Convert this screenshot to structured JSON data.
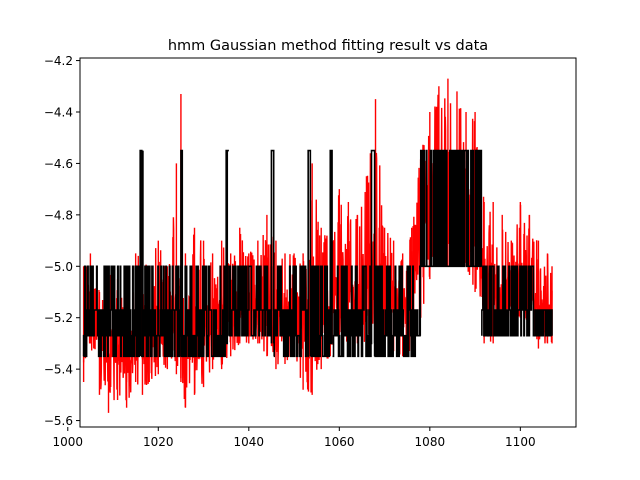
{
  "chart_data": {
    "type": "line",
    "title": "hmm Gaussian method fitting result vs data",
    "xlabel": "",
    "ylabel": "",
    "xlim": [
      1002.7,
      1112.3
    ],
    "ylim": [
      -5.625,
      -4.19
    ],
    "x_ticks": [
      {
        "value": 1000,
        "label": "1000"
      },
      {
        "value": 1020,
        "label": "1020"
      },
      {
        "value": 1040,
        "label": "1040"
      },
      {
        "value": 1060,
        "label": "1060"
      },
      {
        "value": 1080,
        "label": "1080"
      },
      {
        "value": 1100,
        "label": "1100"
      }
    ],
    "y_ticks": [
      {
        "value": -4.2,
        "label": "−4.2"
      },
      {
        "value": -4.4,
        "label": "−4.4"
      },
      {
        "value": -4.6,
        "label": "−4.6"
      },
      {
        "value": -4.8,
        "label": "−4.8"
      },
      {
        "value": -5.0,
        "label": "−5.0"
      },
      {
        "value": -5.2,
        "label": "−5.2"
      },
      {
        "value": -5.4,
        "label": "−5.4"
      },
      {
        "value": -5.6,
        "label": "−5.6"
      }
    ],
    "grid": false,
    "legend": "none",
    "series": [
      {
        "role": "data",
        "color": "#ff0000",
        "x": [
          1003.5,
          1005,
          1007,
          1009,
          1011,
          1013,
          1015,
          1016.5,
          1018,
          1020,
          1022,
          1024,
          1025,
          1026,
          1028,
          1030,
          1032,
          1034,
          1036,
          1038,
          1040,
          1042,
          1044,
          1046,
          1048,
          1050,
          1052,
          1054,
          1056,
          1058,
          1060,
          1062,
          1064,
          1066,
          1068,
          1070,
          1072,
          1074,
          1076,
          1078,
          1080,
          1082,
          1084,
          1086,
          1088,
          1090,
          1092,
          1094,
          1096,
          1098,
          1100,
          1102,
          1104,
          1106,
          1107
        ],
        "y": [
          -5.2,
          -5.15,
          -5.25,
          -5.35,
          -5.3,
          -5.35,
          -5.3,
          -5.25,
          -5.3,
          -5.28,
          -5.25,
          -5.2,
          -5.2,
          -5.25,
          -5.28,
          -5.25,
          -5.22,
          -5.2,
          -5.18,
          -5.15,
          -5.1,
          -5.15,
          -5.18,
          -5.2,
          -5.22,
          -5.18,
          -5.2,
          -5.25,
          -5.2,
          -5.15,
          -5.1,
          -5.1,
          -5.15,
          -5.12,
          -5.1,
          -5.1,
          -5.15,
          -5.2,
          -5.1,
          -4.9,
          -4.75,
          -4.7,
          -4.65,
          -4.7,
          -4.75,
          -4.8,
          -5.1,
          -5.1,
          -5.15,
          -5.05,
          -5.05,
          -5.1,
          -5.18,
          -5.2,
          -5.2
        ],
        "min": [
          -5.45,
          -5.3,
          -5.5,
          -5.57,
          -5.52,
          -5.55,
          -5.45,
          -5.5,
          -5.45,
          -5.42,
          -5.4,
          -5.42,
          -5.45,
          -5.55,
          -5.5,
          -5.47,
          -5.4,
          -5.4,
          -5.35,
          -5.3,
          -5.3,
          -5.3,
          -5.35,
          -5.4,
          -5.38,
          -5.33,
          -5.48,
          -5.5,
          -5.4,
          -5.35,
          -5.3,
          -5.3,
          -5.3,
          -5.35,
          -5.3,
          -5.3,
          -5.33,
          -5.35,
          -5.35,
          -5.2,
          -5.05,
          -4.95,
          -5.0,
          -5.0,
          -5.0,
          -5.1,
          -5.3,
          -5.3,
          -5.25,
          -5.2,
          -5.2,
          -5.25,
          -5.32,
          -5.3,
          -5.3
        ],
        "max": [
          -5.0,
          -4.95,
          -5.1,
          -5.0,
          -5.05,
          -5.1,
          -4.95,
          -4.85,
          -5.0,
          -4.9,
          -5.0,
          -4.6,
          -4.33,
          -4.95,
          -4.85,
          -4.9,
          -4.95,
          -4.9,
          -4.95,
          -4.85,
          -4.95,
          -4.9,
          -4.8,
          -4.9,
          -4.95,
          -4.95,
          -4.95,
          -4.6,
          -4.85,
          -4.8,
          -4.7,
          -4.75,
          -4.8,
          -4.65,
          -4.35,
          -4.85,
          -4.9,
          -4.95,
          -4.85,
          -4.55,
          -4.4,
          -4.3,
          -4.27,
          -4.32,
          -4.4,
          -4.4,
          -4.75,
          -4.75,
          -4.8,
          -4.9,
          -4.75,
          -4.8,
          -4.9,
          -4.95,
          -5.0
        ]
      },
      {
        "role": "fit",
        "color": "#000000",
        "states": [
          -5.35,
          -5.27,
          -5.17,
          -5.0,
          -4.55
        ],
        "segments": [
          {
            "x0": 1003.5,
            "x1": 1016,
            "levels": [
              -5.35,
              -5.27,
              -5.17,
              -5.0
            ]
          },
          {
            "x0": 1016,
            "x1": 1016.6,
            "levels": [
              -5.35,
              -4.55
            ]
          },
          {
            "x0": 1016.6,
            "x1": 1025,
            "levels": [
              -5.35,
              -5.27,
              -5.17,
              -5.0
            ]
          },
          {
            "x0": 1025,
            "x1": 1025.5,
            "levels": [
              -5.35,
              -4.55
            ]
          },
          {
            "x0": 1025.5,
            "x1": 1035,
            "levels": [
              -5.35,
              -5.27,
              -5.17,
              -5.0
            ]
          },
          {
            "x0": 1035,
            "x1": 1035.6,
            "levels": [
              -5.3,
              -4.55
            ]
          },
          {
            "x0": 1035.6,
            "x1": 1045,
            "levels": [
              -5.27,
              -5.17,
              -5.0
            ]
          },
          {
            "x0": 1045,
            "x1": 1045.5,
            "levels": [
              -5.3,
              -4.55
            ]
          },
          {
            "x0": 1045.5,
            "x1": 1053,
            "levels": [
              -5.35,
              -5.27,
              -5.17,
              -5.0
            ]
          },
          {
            "x0": 1053,
            "x1": 1053.6,
            "levels": [
              -5.35,
              -4.55
            ]
          },
          {
            "x0": 1053.6,
            "x1": 1058,
            "levels": [
              -5.35,
              -5.27,
              -5.17,
              -5.0
            ]
          },
          {
            "x0": 1058,
            "x1": 1058.5,
            "levels": [
              -5.3,
              -4.55
            ]
          },
          {
            "x0": 1058.5,
            "x1": 1067,
            "levels": [
              -5.35,
              -5.27,
              -5.17,
              -5.0
            ]
          },
          {
            "x0": 1067,
            "x1": 1067.8,
            "levels": [
              -5.3,
              -4.55
            ]
          },
          {
            "x0": 1067.8,
            "x1": 1078,
            "levels": [
              -5.35,
              -5.27,
              -5.17,
              -5.0
            ]
          },
          {
            "x0": 1078,
            "x1": 1091.5,
            "levels": [
              -5.0,
              -4.55
            ]
          },
          {
            "x0": 1091.5,
            "x1": 1103,
            "levels": [
              -5.27,
              -5.17,
              -5.0
            ]
          },
          {
            "x0": 1103,
            "x1": 1107,
            "levels": [
              -5.27,
              -5.17
            ]
          }
        ]
      }
    ]
  }
}
